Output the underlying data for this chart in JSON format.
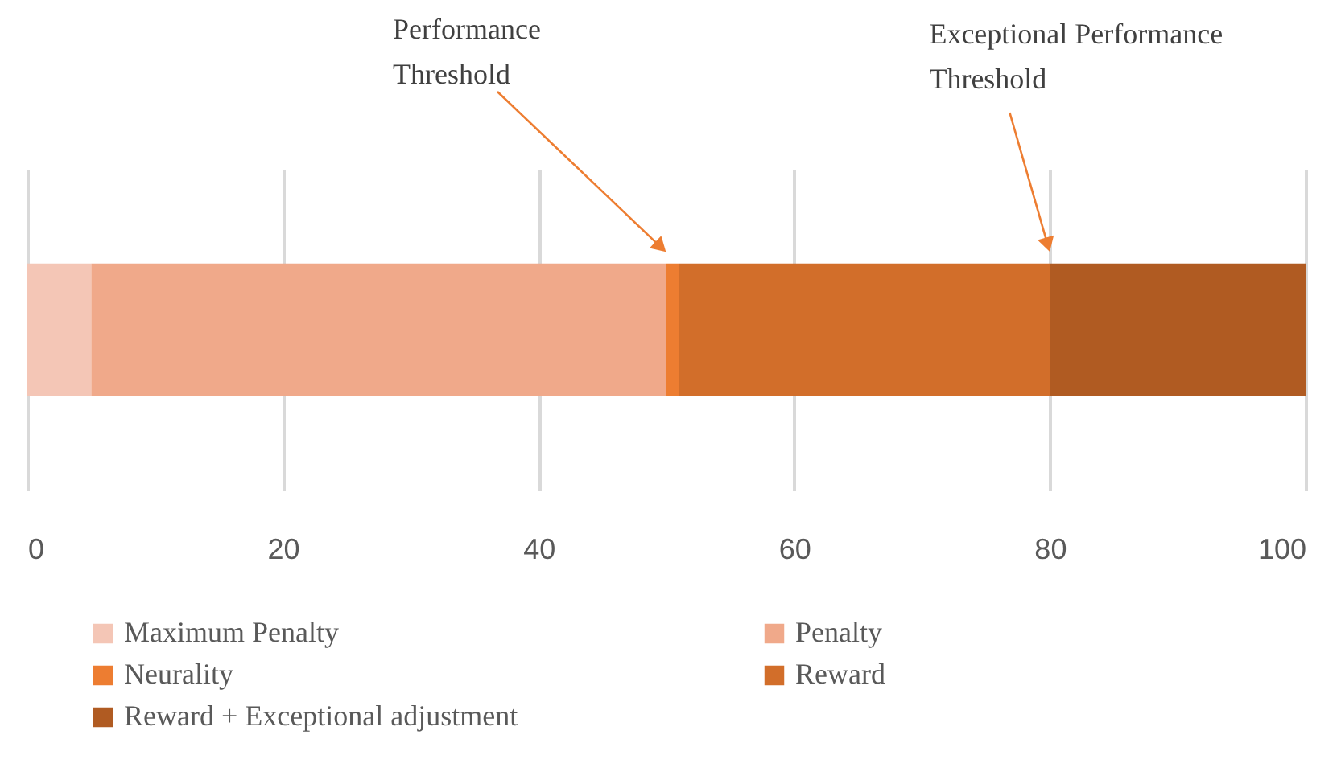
{
  "chart_data": {
    "type": "bar",
    "orientation": "horizontal",
    "stacked": true,
    "categories": [
      null
    ],
    "series": [
      {
        "name": "Maximum Penalty",
        "color": "#f4c6b6",
        "values": [
          5
        ]
      },
      {
        "name": "Penalty",
        "color": "#f0a98a",
        "values": [
          45
        ]
      },
      {
        "name": "Neurality",
        "color": "#ed7d31",
        "values": [
          1
        ]
      },
      {
        "name": "Reward",
        "color": "#d26e2a",
        "values": [
          29
        ]
      },
      {
        "name": "Reward + Exceptional adjustment",
        "color": "#b05b22",
        "values": [
          20
        ]
      }
    ],
    "xlim": [
      0,
      100
    ],
    "xticks": [
      0,
      20,
      40,
      60,
      80,
      100
    ],
    "grid": "x",
    "legend": "bottom",
    "annotations": [
      "Performance\nThreshold",
      "Exceptional Performance\nThreshold"
    ]
  }
}
